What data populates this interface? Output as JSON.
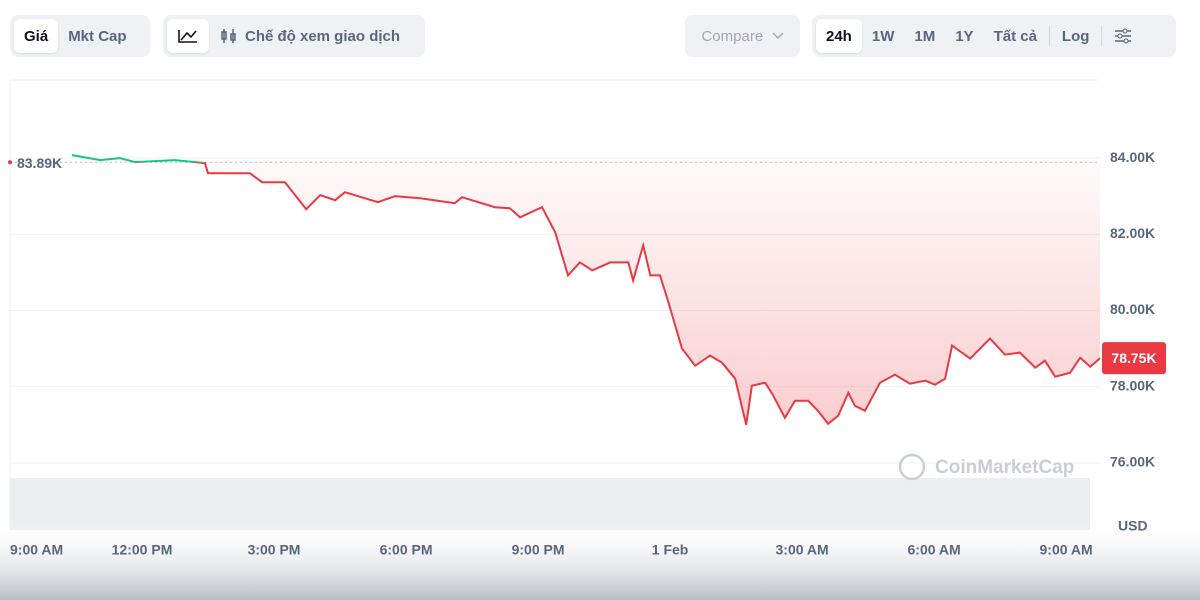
{
  "toolbar": {
    "price_tab": "Giá",
    "mkt_cap_tab": "Mkt Cap",
    "trading_view": "Chế độ xem giao dịch",
    "compare": "Compare",
    "ranges": [
      "24h",
      "1W",
      "1M",
      "1Y",
      "Tất cả"
    ],
    "log": "Log"
  },
  "chart_data": {
    "type": "line",
    "x": [
      1.41,
      2.05,
      2.5,
      2.84,
      3.75,
      4.43,
      4.5,
      5.45,
      5.73,
      6.25,
      6.73,
      7.05,
      7.39,
      7.61,
      8.36,
      8.75,
      9.32,
      10.11,
      10.27,
      11.02,
      11.36,
      11.59,
      12.09,
      12.39,
      12.68,
      12.95,
      13.23,
      13.64,
      14.05,
      14.16,
      14.39,
      14.55,
      14.77,
      14.95,
      15.27,
      15.57,
      15.91,
      16.18,
      16.48,
      16.73,
      16.86,
      17.16,
      17.32,
      17.61,
      17.84,
      18.14,
      18.36,
      18.59,
      18.82,
      19.05,
      19.2,
      19.43,
      19.77,
      20.11,
      20.45,
      20.8,
      21.02,
      21.25,
      21.41,
      21.82,
      22.27,
      22.61,
      22.95,
      23.3,
      23.52,
      23.75,
      24.09,
      24.32,
      24.55,
      24.77
    ],
    "values": [
      84079,
      83947,
      84000,
      83895,
      83947,
      83868,
      83605,
      83605,
      83368,
      83368,
      82658,
      83026,
      82895,
      83105,
      82842,
      83000,
      82947,
      82816,
      82974,
      82711,
      82684,
      82447,
      82711,
      82053,
      80921,
      81263,
      81053,
      81263,
      81263,
      80789,
      81711,
      80921,
      80921,
      80263,
      79000,
      78553,
      78816,
      78632,
      78211,
      77000,
      78026,
      78105,
      77816,
      77184,
      77632,
      77632,
      77368,
      77026,
      77237,
      77842,
      77500,
      77368,
      78105,
      78316,
      78079,
      78158,
      78053,
      78211,
      79079,
      78737,
      79263,
      78842,
      78895,
      78500,
      78684,
      78263,
      78368,
      78763,
      78526,
      78750
    ],
    "up_color": "#16c784",
    "down_color": "#ea3943",
    "reference": {
      "value": 83890,
      "label": "83.89K"
    },
    "current": {
      "value": 78750,
      "label": "78.75K"
    },
    "xlim": [
      0,
      24.77
    ],
    "ylim": [
      74240,
      86050
    ],
    "xticks": [
      {
        "value": 0,
        "label": "9:00 AM"
      },
      {
        "value": 3,
        "label": "12:00 PM"
      },
      {
        "value": 6,
        "label": "3:00 PM"
      },
      {
        "value": 9,
        "label": "6:00 PM"
      },
      {
        "value": 12,
        "label": "9:00 PM"
      },
      {
        "value": 15,
        "label": "1 Feb"
      },
      {
        "value": 18,
        "label": "3:00 AM"
      },
      {
        "value": 21,
        "label": "6:00 AM"
      },
      {
        "value": 24,
        "label": "9:00 AM"
      }
    ],
    "yticks": [
      {
        "value": 76000,
        "label": "76.00K"
      },
      {
        "value": 78000,
        "label": "78.00K"
      },
      {
        "value": 80000,
        "label": "80.00K"
      },
      {
        "value": 82000,
        "label": "82.00K"
      },
      {
        "value": 84000,
        "label": "84.00K"
      }
    ],
    "grid": true,
    "y_unit": "USD",
    "watermark": "CoinMarketCap"
  }
}
